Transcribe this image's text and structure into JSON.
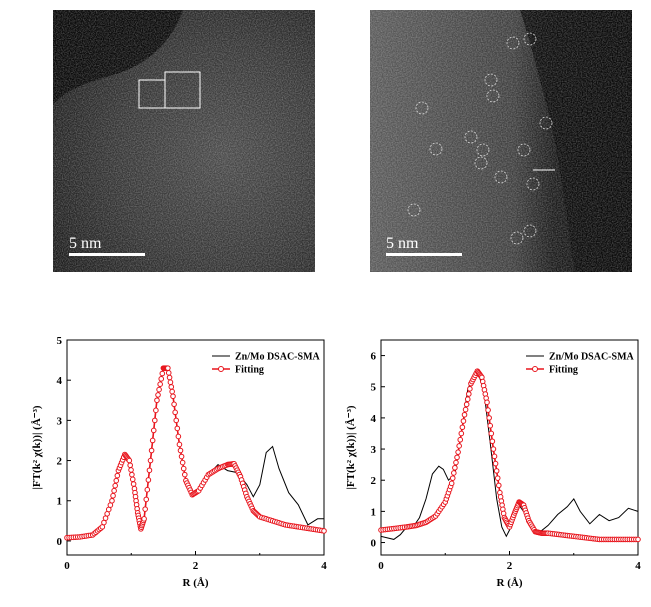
{
  "micrographs": [
    {
      "scale_bar_label": "5 nm"
    },
    {
      "scale_bar_label": "5 nm"
    }
  ],
  "chart_data": [
    {
      "type": "line",
      "xlabel": "R (Å)",
      "ylabel": "|FT(k² χ(k))| (Å⁻³)",
      "xlim": [
        0,
        4
      ],
      "ylim": [
        -0.35,
        5
      ],
      "x_ticks": [
        0,
        2,
        4
      ],
      "y_ticks": [
        0,
        1,
        2,
        3,
        4,
        5
      ],
      "legend_position": "top-right",
      "series": [
        {
          "name": "Zn/Mo DSAC-SMA",
          "color": "#000000",
          "x": [
            0,
            0.2,
            0.4,
            0.55,
            0.7,
            0.8,
            0.9,
            0.97,
            1.05,
            1.1,
            1.15,
            1.2,
            1.3,
            1.4,
            1.5,
            1.57,
            1.65,
            1.75,
            1.85,
            1.95,
            2.05,
            2.2,
            2.35,
            2.5,
            2.65,
            2.8,
            2.9,
            3.0,
            3.1,
            3.2,
            3.3,
            3.45,
            3.6,
            3.75,
            3.9,
            4.0
          ],
          "y": [
            0.05,
            0.1,
            0.15,
            0.35,
            1.0,
            1.75,
            2.15,
            2.0,
            1.3,
            0.7,
            0.35,
            0.55,
            2.0,
            3.5,
            4.3,
            4.3,
            3.6,
            2.4,
            1.5,
            1.15,
            1.25,
            1.65,
            1.9,
            1.75,
            1.7,
            1.4,
            1.1,
            1.4,
            2.2,
            2.35,
            1.8,
            1.2,
            0.9,
            0.4,
            0.55,
            0.55
          ]
        },
        {
          "name": "Fitting",
          "color": "#e8151d",
          "x": [
            0,
            0.2,
            0.4,
            0.55,
            0.7,
            0.8,
            0.9,
            0.97,
            1.05,
            1.1,
            1.15,
            1.2,
            1.3,
            1.4,
            1.5,
            1.57,
            1.65,
            1.75,
            1.85,
            1.95,
            2.05,
            2.2,
            2.35,
            2.5,
            2.6,
            2.7,
            2.8,
            2.9,
            3.0,
            3.2,
            3.4,
            3.6,
            3.8,
            4.0
          ],
          "y": [
            0.08,
            0.1,
            0.15,
            0.35,
            1.0,
            1.75,
            2.15,
            2.0,
            1.3,
            0.7,
            0.3,
            0.55,
            2.0,
            3.5,
            4.3,
            4.3,
            3.6,
            2.4,
            1.5,
            1.15,
            1.25,
            1.65,
            1.8,
            1.9,
            1.92,
            1.6,
            1.1,
            0.75,
            0.6,
            0.5,
            0.4,
            0.35,
            0.3,
            0.25
          ]
        }
      ]
    },
    {
      "type": "line",
      "xlabel": "R (Å)",
      "ylabel": "|FT(k² χ(k))| (Å⁻³)",
      "xlim": [
        0,
        4
      ],
      "ylim": [
        -0.4,
        6.5
      ],
      "x_ticks": [
        0,
        2,
        4
      ],
      "y_ticks": [
        0,
        1,
        2,
        3,
        4,
        5,
        6
      ],
      "legend_position": "top-right",
      "series": [
        {
          "name": "Zn/Mo DSAC-SMA",
          "color": "#000000",
          "x": [
            0,
            0.1,
            0.2,
            0.3,
            0.4,
            0.5,
            0.6,
            0.7,
            0.8,
            0.9,
            0.97,
            1.05,
            1.15,
            1.25,
            1.35,
            1.45,
            1.5,
            1.6,
            1.7,
            1.8,
            1.88,
            1.95,
            2.05,
            2.15,
            2.25,
            2.35,
            2.45,
            2.6,
            2.75,
            2.9,
            3.0,
            3.1,
            3.25,
            3.4,
            3.55,
            3.7,
            3.85,
            4.0
          ],
          "y": [
            0.2,
            0.15,
            0.1,
            0.25,
            0.5,
            0.5,
            0.8,
            1.4,
            2.2,
            2.45,
            2.35,
            2.0,
            2.2,
            3.5,
            4.9,
            5.45,
            5.5,
            4.9,
            3.2,
            1.4,
            0.5,
            0.2,
            0.6,
            1.2,
            0.9,
            0.5,
            0.3,
            0.55,
            0.9,
            1.15,
            1.4,
            1.0,
            0.6,
            0.9,
            0.7,
            0.8,
            1.1,
            1.0
          ]
        },
        {
          "name": "Fitting",
          "color": "#e8151d",
          "x": [
            0,
            0.2,
            0.4,
            0.55,
            0.7,
            0.85,
            1.0,
            1.1,
            1.2,
            1.3,
            1.4,
            1.5,
            1.57,
            1.65,
            1.75,
            1.85,
            1.92,
            2.0,
            2.08,
            2.15,
            2.22,
            2.3,
            2.4,
            2.5,
            2.6,
            2.8,
            3.0,
            3.2,
            3.4,
            3.6,
            3.8,
            4.0
          ],
          "y": [
            0.4,
            0.45,
            0.5,
            0.55,
            0.65,
            0.85,
            1.3,
            1.9,
            2.9,
            4.1,
            5.1,
            5.5,
            5.3,
            4.5,
            3.0,
            1.6,
            0.8,
            0.5,
            0.95,
            1.3,
            1.2,
            0.7,
            0.35,
            0.3,
            0.3,
            0.25,
            0.2,
            0.15,
            0.1,
            0.1,
            0.1,
            0.1
          ]
        }
      ]
    }
  ]
}
